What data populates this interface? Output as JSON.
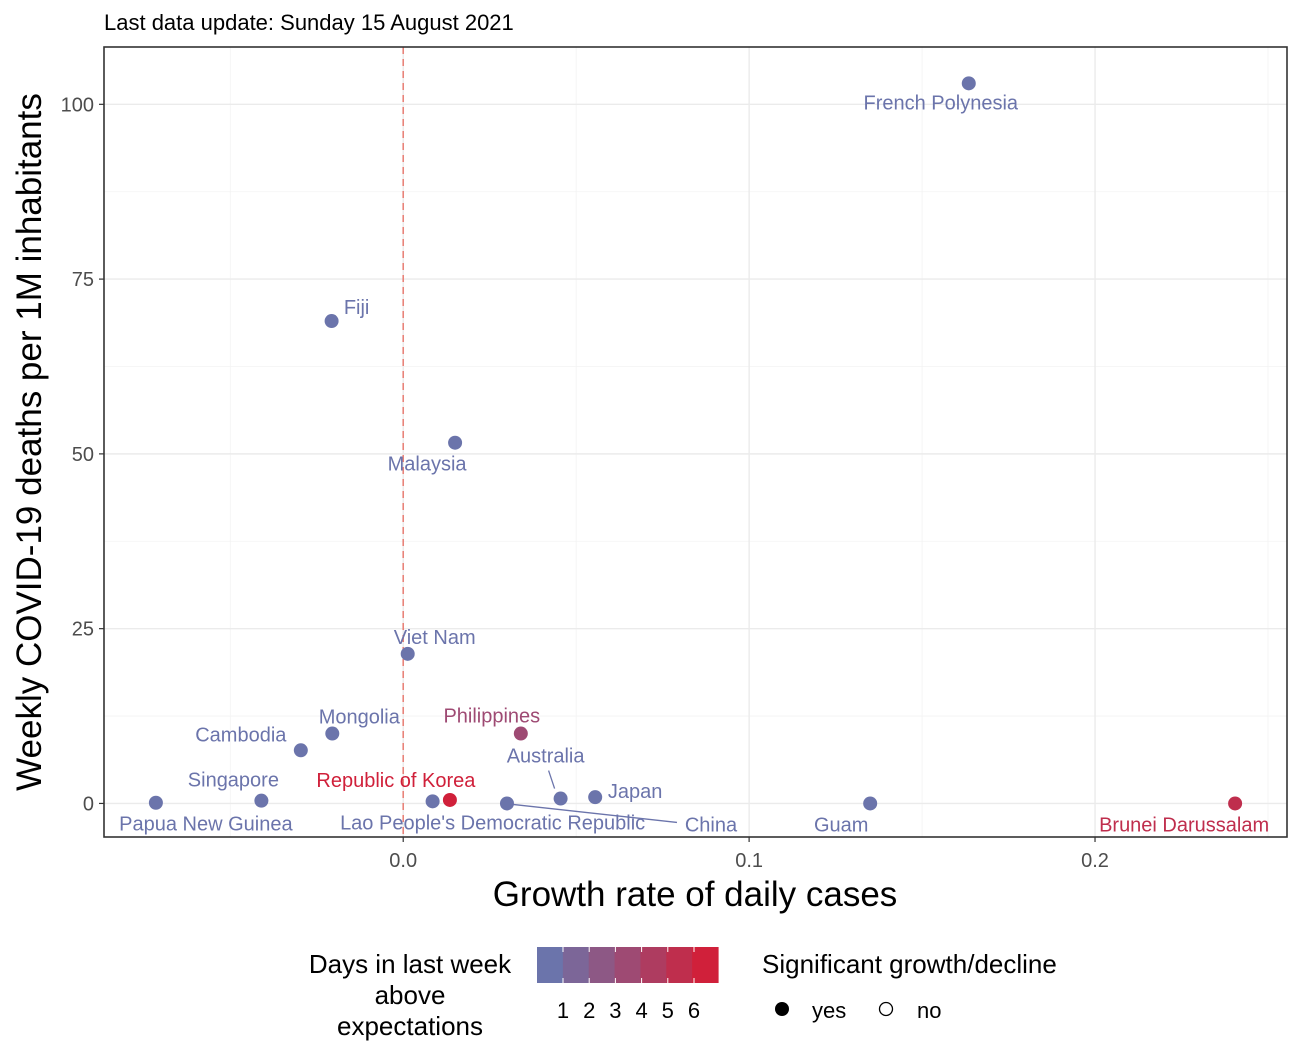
{
  "chart_data": {
    "type": "scatter",
    "title": "Last data update: Sunday 15 August 2021",
    "xlabel": "Growth rate of daily cases",
    "ylabel": "Weekly COVID-19 deaths per 1M inhabitants",
    "xlim": [
      -0.0865,
      0.2555
    ],
    "ylim": [
      -4.8,
      108.2
    ],
    "x_ticks": [
      0.0,
      0.1,
      0.2
    ],
    "x_tick_labels": [
      "0.0",
      "0.1",
      "0.2"
    ],
    "y_ticks": [
      0,
      25,
      50,
      75,
      100
    ],
    "y_tick_labels": [
      "0",
      "25",
      "50",
      "75",
      "100"
    ],
    "grid": true,
    "reference_line": {
      "x": 0.0,
      "style": "dashed",
      "color": "#e8837a"
    },
    "colors": {
      "low": "#6b74ab",
      "high": "#d0203a"
    },
    "points": [
      {
        "label": "French Polynesia",
        "x": 0.1635,
        "y": 103.0,
        "days": 0
      },
      {
        "label": "Fiji",
        "x": -0.0207,
        "y": 69.0,
        "days": 0
      },
      {
        "label": "Malaysia",
        "x": 0.015,
        "y": 51.6,
        "days": 0
      },
      {
        "label": "Viet Nam",
        "x": 0.0013,
        "y": 21.4,
        "days": 0
      },
      {
        "label": "Philippines",
        "x": 0.034,
        "y": 10.0,
        "days": 3
      },
      {
        "label": "Mongolia",
        "x": -0.0205,
        "y": 10.0,
        "days": 0
      },
      {
        "label": "Cambodia",
        "x": -0.0296,
        "y": 7.6,
        "days": 0
      },
      {
        "label": "Australia",
        "x": 0.0455,
        "y": 0.7,
        "days": 0
      },
      {
        "label": "Japan",
        "x": 0.0555,
        "y": 0.9,
        "days": 0
      },
      {
        "label": "Singapore",
        "x": -0.041,
        "y": 0.4,
        "days": 0
      },
      {
        "label": "Republic of Korea",
        "x": 0.0135,
        "y": 0.5,
        "days": 6
      },
      {
        "label": "Papua New Guinea",
        "x": -0.0715,
        "y": 0.1,
        "days": 0
      },
      {
        "label": "Lao People's Democratic Republic",
        "x": 0.0085,
        "y": 0.3,
        "days": 0
      },
      {
        "label": "China",
        "x": 0.03,
        "y": 0.0,
        "days": 0
      },
      {
        "label": "Guam",
        "x": 0.135,
        "y": 0.0,
        "days": 0
      },
      {
        "label": "Brunei Darussalam",
        "x": 0.2405,
        "y": 0.0,
        "days": 5
      }
    ],
    "legend": {
      "placement": "bottom",
      "color_title": [
        "Days in last week",
        "above",
        "expectations"
      ],
      "color_ticks": [
        "1",
        "2",
        "3",
        "4",
        "5",
        "6"
      ],
      "shape_title": "Significant growth/decline",
      "shape_items": [
        "yes",
        "no"
      ]
    }
  }
}
